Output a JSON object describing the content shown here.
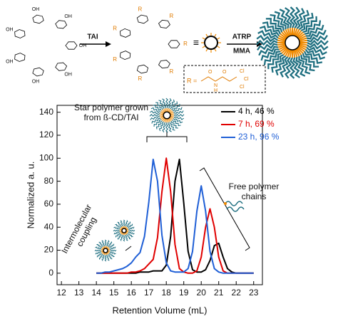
{
  "scheme": {
    "reagent_1": "TAI",
    "equivalent": "≡",
    "reagent_2": "ATRP",
    "reagent_3": "MMA",
    "r_equals": "R =",
    "r_label": "R",
    "hydroxyl": "OH",
    "oxygen": "O",
    "nitrogen_h": "N",
    "hydrogen": "H",
    "chlorine": "Cl"
  },
  "chart_data": {
    "type": "line",
    "x_label": "Retention Volume (mL)",
    "y_label": "Normalized a. u.",
    "annotations": {
      "star": [
        "Star polymer grown",
        "from ß-CD/TAI"
      ],
      "free": [
        "Free polymer",
        "chains"
      ],
      "coupling": [
        "Intermolecular",
        "coupling"
      ]
    },
    "x": [
      14,
      14.25,
      14.5,
      14.75,
      15,
      15.25,
      15.5,
      15.75,
      16,
      16.25,
      16.5,
      16.75,
      17,
      17.25,
      17.5,
      17.75,
      18,
      18.25,
      18.5,
      18.75,
      19,
      19.25,
      19.5,
      19.75,
      20,
      20.25,
      20.5,
      20.75,
      21,
      21.25,
      21.5,
      21.75,
      22,
      22.25,
      22.5,
      22.75,
      23
    ],
    "series": [
      {
        "name": "4 h, 46 %",
        "color": "#000000",
        "values": [
          0,
          0,
          0,
          0,
          0,
          0,
          0,
          0,
          0,
          0,
          1,
          1,
          1,
          2,
          2,
          2,
          7,
          32,
          80,
          99,
          61,
          19,
          3,
          1,
          1,
          3,
          11,
          24,
          26,
          14,
          4,
          1,
          0,
          0,
          0,
          0,
          0
        ]
      },
      {
        "name": "7 h, 69 %",
        "color": "#e00000",
        "values": [
          0,
          0,
          0,
          0,
          0,
          0,
          0,
          0,
          1,
          1,
          2,
          4,
          8,
          12,
          31,
          71,
          100,
          71,
          25,
          4,
          1,
          0,
          0,
          2,
          14,
          40,
          56,
          40,
          14,
          2,
          0,
          0,
          0,
          0,
          0,
          0,
          0
        ]
      },
      {
        "name": "23 h, 96 %",
        "color": "#1f5fd6",
        "values": [
          0,
          0,
          1,
          1,
          2,
          3,
          4,
          6,
          9,
          14,
          18,
          32,
          62,
          99,
          80,
          33,
          9,
          2,
          1,
          1,
          1,
          4,
          19,
          54,
          76,
          54,
          19,
          4,
          1,
          0,
          0,
          0,
          0,
          0,
          0,
          0,
          0
        ]
      }
    ],
    "xlim": [
      11.75,
      23.5
    ],
    "ylim": [
      -10,
      146
    ],
    "xticks": [
      12,
      13,
      14,
      15,
      16,
      17,
      18,
      19,
      20,
      21,
      22,
      23
    ],
    "yticks": [
      0,
      20,
      40,
      60,
      80,
      100,
      120,
      140
    ]
  }
}
